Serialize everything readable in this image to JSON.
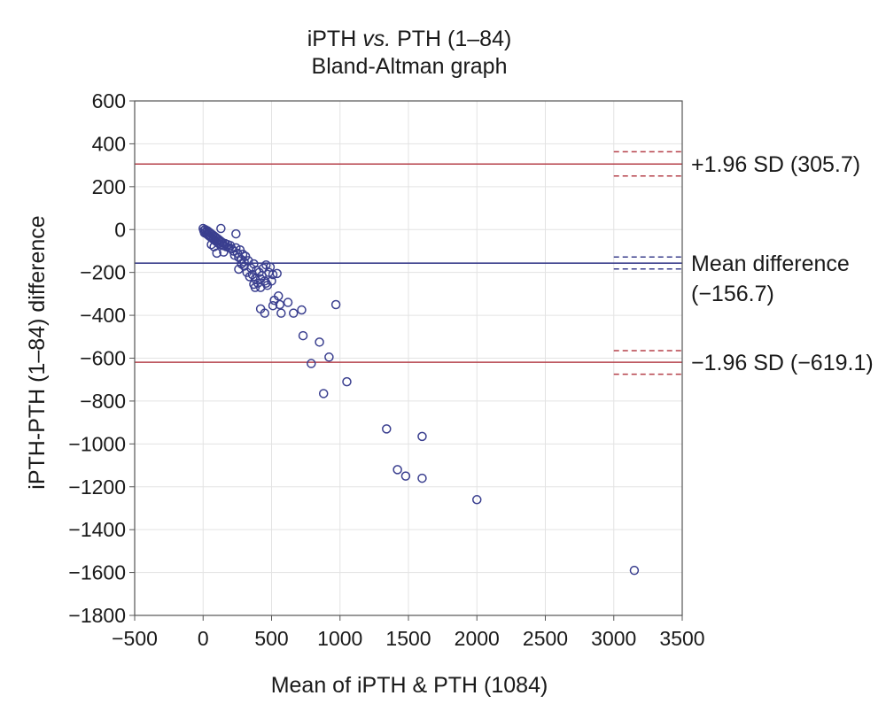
{
  "chart_data": {
    "type": "scatter",
    "title_line1": "iPTH vs. PTH (1–84)",
    "title_line1_prefix": "iPTH ",
    "title_line1_italic": "vs.",
    "title_line1_suffix": " PTH (1–84)",
    "title_line2": "Bland-Altman graph",
    "xlabel": "Mean of iPTH & PTH (1084)",
    "ylabel": "iPTH-PTH (1–84) difference",
    "xlim": [
      -500,
      3500
    ],
    "ylim": [
      -1800,
      600
    ],
    "xticks": [
      -500,
      0,
      500,
      1000,
      1500,
      2000,
      2500,
      3000,
      3500
    ],
    "xtick_labels": [
      "−500",
      "0",
      "500",
      "1000",
      "1500",
      "2000",
      "2500",
      "3000",
      "3500"
    ],
    "yticks": [
      600,
      400,
      200,
      0,
      -200,
      -400,
      -600,
      -800,
      -1000,
      -1200,
      -1400,
      -1600,
      -1800
    ],
    "ytick_labels": [
      "600",
      "400",
      "200",
      "0",
      "−200",
      "−400",
      "−600",
      "−800",
      "−1000",
      "−1200",
      "−1400",
      "−1600",
      "−1800"
    ],
    "grid": true,
    "colors": {
      "points": "#3a3f8f",
      "mean_line": "#3b3f8c",
      "limit_line": "#b5404a"
    },
    "reference_lines": [
      {
        "name": "upper-limit",
        "y": 305.7,
        "ci": [
          250,
          363
        ],
        "kind": "limit",
        "label_lines": [
          "+1.96 SD (305.7)"
        ]
      },
      {
        "name": "mean-difference",
        "y": -156.7,
        "ci": [
          -184,
          -128
        ],
        "kind": "mean",
        "label_lines": [
          "Mean difference",
          "(−156.7)"
        ]
      },
      {
        "name": "lower-limit",
        "y": -619.1,
        "ci": [
          -675,
          -565
        ],
        "kind": "limit",
        "label_lines": [
          "−1.96 SD (−619.1)"
        ]
      }
    ],
    "ci_x_range": [
      3000,
      3500
    ],
    "points": [
      [
        0,
        5
      ],
      [
        5,
        -5
      ],
      [
        10,
        -15
      ],
      [
        15,
        0
      ],
      [
        20,
        -10
      ],
      [
        25,
        -20
      ],
      [
        30,
        -5
      ],
      [
        35,
        -25
      ],
      [
        40,
        -10
      ],
      [
        45,
        -30
      ],
      [
        50,
        -15
      ],
      [
        55,
        -35
      ],
      [
        60,
        -20
      ],
      [
        65,
        -40
      ],
      [
        70,
        -25
      ],
      [
        75,
        -45
      ],
      [
        80,
        -30
      ],
      [
        85,
        -50
      ],
      [
        90,
        -35
      ],
      [
        95,
        -55
      ],
      [
        100,
        -40
      ],
      [
        105,
        -60
      ],
      [
        110,
        -45
      ],
      [
        115,
        -65
      ],
      [
        120,
        -50
      ],
      [
        125,
        -70
      ],
      [
        130,
        -55
      ],
      [
        140,
        -60
      ],
      [
        150,
        -75
      ],
      [
        160,
        -65
      ],
      [
        170,
        -80
      ],
      [
        180,
        -70
      ],
      [
        190,
        -85
      ],
      [
        200,
        -75
      ],
      [
        210,
        -90
      ],
      [
        130,
        5
      ],
      [
        80,
        -80
      ],
      [
        100,
        -110
      ],
      [
        60,
        -70
      ],
      [
        150,
        -105
      ],
      [
        220,
        -100
      ],
      [
        230,
        -120
      ],
      [
        240,
        -85
      ],
      [
        250,
        -110
      ],
      [
        260,
        -130
      ],
      [
        270,
        -95
      ],
      [
        280,
        -140
      ],
      [
        290,
        -115
      ],
      [
        300,
        -150
      ],
      [
        310,
        -125
      ],
      [
        240,
        -20
      ],
      [
        260,
        -185
      ],
      [
        280,
        -160
      ],
      [
        300,
        -170
      ],
      [
        320,
        -200
      ],
      [
        330,
        -145
      ],
      [
        340,
        -220
      ],
      [
        350,
        -180
      ],
      [
        360,
        -210
      ],
      [
        370,
        -160
      ],
      [
        380,
        -230
      ],
      [
        390,
        -190
      ],
      [
        400,
        -250
      ],
      [
        410,
        -200
      ],
      [
        420,
        -270
      ],
      [
        430,
        -215
      ],
      [
        440,
        -180
      ],
      [
        450,
        -240
      ],
      [
        460,
        -165
      ],
      [
        470,
        -260
      ],
      [
        480,
        -200
      ],
      [
        490,
        -175
      ],
      [
        500,
        -240
      ],
      [
        510,
        -210
      ],
      [
        370,
        -255
      ],
      [
        380,
        -270
      ],
      [
        420,
        -230
      ],
      [
        460,
        -250
      ],
      [
        540,
        -205
      ],
      [
        550,
        -310
      ],
      [
        520,
        -330
      ],
      [
        510,
        -355
      ],
      [
        570,
        -390
      ],
      [
        560,
        -350
      ],
      [
        620,
        -340
      ],
      [
        660,
        -390
      ],
      [
        720,
        -375
      ],
      [
        420,
        -370
      ],
      [
        450,
        -390
      ],
      [
        730,
        -495
      ],
      [
        850,
        -525
      ],
      [
        920,
        -595
      ],
      [
        970,
        -350
      ],
      [
        790,
        -625
      ],
      [
        880,
        -765
      ],
      [
        1050,
        -710
      ],
      [
        1340,
        -930
      ],
      [
        1600,
        -965
      ],
      [
        1420,
        -1120
      ],
      [
        1480,
        -1150
      ],
      [
        1600,
        -1160
      ],
      [
        2000,
        -1260
      ],
      [
        3150,
        -1590
      ]
    ]
  }
}
